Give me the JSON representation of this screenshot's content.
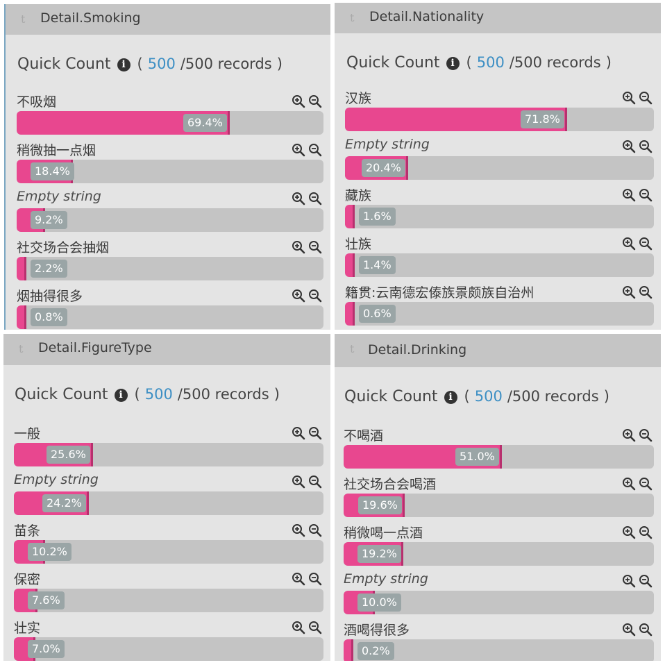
{
  "colors": {
    "accent": "#e8478f",
    "link": "#3d8fc4",
    "header_bg": "#c5c5c5",
    "panel_bg": "#e4e4e4"
  },
  "panels": [
    {
      "title": "Detail.Smoking",
      "type_icon": "t",
      "quick_count": {
        "label": "Quick Count",
        "open": "(",
        "count": "500",
        "total": "/500 records",
        "close": ")"
      },
      "rows": [
        {
          "label": "不吸烟",
          "percent": 69.4,
          "percent_text": "69.4%",
          "italic": false
        },
        {
          "label": "稍微抽一点烟",
          "percent": 18.4,
          "percent_text": "18.4%",
          "italic": false
        },
        {
          "label": "Empty string",
          "percent": 9.2,
          "percent_text": "9.2%",
          "italic": true
        },
        {
          "label": "社交场合会抽烟",
          "percent": 2.2,
          "percent_text": "2.2%",
          "italic": false
        },
        {
          "label": "烟抽得很多",
          "percent": 0.8,
          "percent_text": "0.8%",
          "italic": false
        }
      ]
    },
    {
      "title": "Detail.Nationality",
      "type_icon": "t",
      "quick_count": {
        "label": "Quick Count",
        "open": "(",
        "count": "500",
        "total": "/500 records",
        "close": ")"
      },
      "rows": [
        {
          "label": "汉族",
          "percent": 71.8,
          "percent_text": "71.8%",
          "italic": false
        },
        {
          "label": "Empty string",
          "percent": 20.4,
          "percent_text": "20.4%",
          "italic": true
        },
        {
          "label": "藏族",
          "percent": 1.6,
          "percent_text": "1.6%",
          "italic": false
        },
        {
          "label": "壮族",
          "percent": 1.4,
          "percent_text": "1.4%",
          "italic": false
        },
        {
          "label": "籍贯:云南德宏傣族景颇族自治州",
          "percent": 0.6,
          "percent_text": "0.6%",
          "italic": false
        }
      ]
    },
    {
      "title": "Detail.FigureType",
      "type_icon": "t",
      "quick_count": {
        "label": "Quick Count",
        "open": "(",
        "count": "500",
        "total": "/500 records",
        "close": ")"
      },
      "rows": [
        {
          "label": "一般",
          "percent": 25.6,
          "percent_text": "25.6%",
          "italic": false
        },
        {
          "label": "Empty string",
          "percent": 24.2,
          "percent_text": "24.2%",
          "italic": true
        },
        {
          "label": "苗条",
          "percent": 10.2,
          "percent_text": "10.2%",
          "italic": false
        },
        {
          "label": "保密",
          "percent": 7.6,
          "percent_text": "7.6%",
          "italic": false
        },
        {
          "label": "壮实",
          "percent": 7.0,
          "percent_text": "7.0%",
          "italic": false
        }
      ]
    },
    {
      "title": "Detail.Drinking",
      "type_icon": "t",
      "quick_count": {
        "label": "Quick Count",
        "open": "(",
        "count": "500",
        "total": "/500 records",
        "close": ")"
      },
      "rows": [
        {
          "label": "不喝酒",
          "percent": 51.0,
          "percent_text": "51.0%",
          "italic": false
        },
        {
          "label": "社交场合会喝酒",
          "percent": 19.6,
          "percent_text": "19.6%",
          "italic": false
        },
        {
          "label": "稍微喝一点酒",
          "percent": 19.2,
          "percent_text": "19.2%",
          "italic": false
        },
        {
          "label": "Empty string",
          "percent": 10.0,
          "percent_text": "10.0%",
          "italic": true
        },
        {
          "label": "酒喝得很多",
          "percent": 0.2,
          "percent_text": "0.2%",
          "italic": false
        }
      ]
    }
  ]
}
